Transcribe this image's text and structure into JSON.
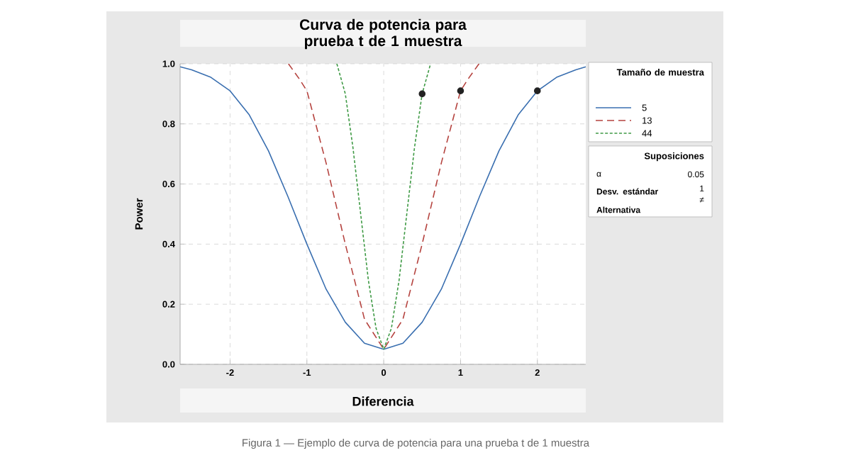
{
  "chart_data": {
    "type": "line",
    "title": "Curva de potencia para prueba t de 1 muestra",
    "xlabel": "Diferencia",
    "ylabel": "Power",
    "legend_title": "Tamaño de muestra",
    "xlim": [
      -2.65,
      2.63
    ],
    "ylim": [
      0,
      1
    ],
    "xticks": [
      -2,
      -1,
      0,
      1,
      2
    ],
    "yticks": [
      {
        "value": 0,
        "label": "0.0"
      },
      {
        "value": 0.2,
        "label": "0.2"
      },
      {
        "value": 0.4,
        "label": "0.4"
      },
      {
        "value": 0.6,
        "label": "0.6"
      },
      {
        "value": 0.8,
        "label": "0.8"
      },
      {
        "value": 1,
        "label": "1.0"
      }
    ],
    "grid": true,
    "legend": "right",
    "marker": "none",
    "series": [
      {
        "name": "5",
        "color": "#3a6fb0",
        "line_style": "solid",
        "x": [
          -2.65,
          -2.5,
          -2.25,
          -2,
          -1.75,
          -1.5,
          -1.25,
          -1,
          -0.75,
          -0.5,
          -0.25,
          0,
          0.25,
          0.5,
          0.75,
          1,
          1.25,
          1.5,
          1.75,
          2,
          2.25,
          2.5,
          2.63
        ],
        "values": [
          0.99,
          0.98,
          0.955,
          0.91,
          0.83,
          0.71,
          0.56,
          0.4,
          0.25,
          0.14,
          0.07,
          0.05,
          0.07,
          0.14,
          0.25,
          0.4,
          0.56,
          0.71,
          0.83,
          0.91,
          0.955,
          0.98,
          0.99
        ]
      },
      {
        "name": "13",
        "color": "#b5433f",
        "line_style": "dashed",
        "x": [
          -1.24,
          -1.1,
          -1,
          -0.75,
          -0.5,
          -0.25,
          0,
          0.25,
          0.5,
          0.75,
          1,
          1.1,
          1.24
        ],
        "values": [
          1,
          0.95,
          0.91,
          0.67,
          0.4,
          0.15,
          0.05,
          0.15,
          0.4,
          0.67,
          0.91,
          0.95,
          1
        ]
      },
      {
        "name": "44",
        "color": "#3f9a45",
        "line_style": "dotted",
        "x": [
          -0.61,
          -0.5,
          -0.4,
          -0.3,
          -0.2,
          -0.1,
          0,
          0.1,
          0.2,
          0.3,
          0.4,
          0.5,
          0.61
        ],
        "values": [
          1,
          0.9,
          0.72,
          0.5,
          0.28,
          0.12,
          0.05,
          0.12,
          0.28,
          0.5,
          0.72,
          0.9,
          1
        ]
      },
      {
        "type": "scatter",
        "marker": "circle",
        "color": "#222222",
        "x": [
          0.5,
          1,
          2
        ],
        "values": [
          0.9,
          0.91,
          0.91
        ]
      }
    ],
    "annotations": [
      "Figura 1 — Ejemplo de curva de potencia para una prueba t de 1 muestra",
      "Suposiciones",
      "α",
      "0.05",
      "Desv. estándar",
      "1",
      "Alternativa",
      "≠"
    ]
  }
}
